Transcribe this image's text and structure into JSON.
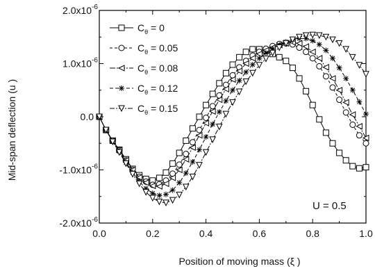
{
  "chart_data": {
    "type": "line",
    "xlabel": "Position of moving mass (ξ )",
    "ylabel": "Mid-span deflection (u )",
    "xlim": [
      0.0,
      1.0
    ],
    "ylim": [
      -2e-06,
      2e-06
    ],
    "x_ticks": [
      {
        "value": 0.0,
        "label": "0.0"
      },
      {
        "value": 0.2,
        "label": "0.2"
      },
      {
        "value": 0.4,
        "label": "0.4"
      },
      {
        "value": 0.6,
        "label": "0.6"
      },
      {
        "value": 0.8,
        "label": "0.8"
      },
      {
        "value": 1.0,
        "label": "1.0"
      }
    ],
    "y_ticks": [
      {
        "value": 2e-06,
        "mantissa": "2.0x10",
        "exponent": "-6"
      },
      {
        "value": 1e-06,
        "mantissa": "1.0x10",
        "exponent": "-6"
      },
      {
        "value": 0.0,
        "mantissa": "0.0",
        "exponent": ""
      },
      {
        "value": -1e-06,
        "mantissa": "-1.0x10",
        "exponent": "-6"
      },
      {
        "value": -2e-06,
        "mantissa": "-2.0x10",
        "exponent": "-6"
      }
    ],
    "annotation": "U = 0.5",
    "legend_position": "top-left",
    "grid": false,
    "x": [
      0.0,
      0.025,
      0.05,
      0.075,
      0.1,
      0.125,
      0.15,
      0.175,
      0.2,
      0.225,
      0.25,
      0.275,
      0.3,
      0.325,
      0.35,
      0.375,
      0.4,
      0.425,
      0.45,
      0.475,
      0.5,
      0.525,
      0.55,
      0.575,
      0.6,
      0.625,
      0.65,
      0.675,
      0.7,
      0.725,
      0.75,
      0.775,
      0.8,
      0.825,
      0.85,
      0.875,
      0.9,
      0.925,
      0.95,
      0.975,
      1.0
    ],
    "series": [
      {
        "name": "Cθ = 0",
        "sym": "C",
        "sub": "θ",
        "value": " = 0",
        "marker": "square",
        "dash": "",
        "values": [
          0.0,
          -2.5e-07,
          -4.5e-07,
          -6.2e-07,
          -8e-07,
          -9.8e-07,
          -1.1e-06,
          -1.17e-06,
          -1.2e-06,
          -1.15e-06,
          -1.05e-06,
          -8.8e-07,
          -6.8e-07,
          -4.5e-07,
          -2.2e-07,
          0.0,
          2.2e-07,
          4.3e-07,
          6.3e-07,
          8.2e-07,
          9.8e-07,
          1.12e-06,
          1.22e-06,
          1.27e-06,
          1.27e-06,
          1.24e-06,
          1.18e-06,
          1.12e-06,
          1.05e-06,
          9.2e-07,
          7.2e-07,
          4.8e-07,
          2.2e-07,
          -5e-08,
          -3e-07,
          -5e-07,
          -6.8e-07,
          -8.2e-07,
          -9.3e-07,
          -9.7e-07,
          -9.5e-07
        ]
      },
      {
        "name": "Cθ = 0.05",
        "sym": "C",
        "sub": "θ",
        "value": " = 0.05",
        "marker": "circle",
        "dash": "4,3",
        "values": [
          0.0,
          -2.5e-07,
          -4.5e-07,
          -6.3e-07,
          -8.2e-07,
          -1e-06,
          -1.13e-06,
          -1.22e-06,
          -1.28e-06,
          -1.27e-06,
          -1.2e-06,
          -1.07e-06,
          -9e-07,
          -7e-07,
          -4.8e-07,
          -2.5e-07,
          -2e-08,
          2e-07,
          4e-07,
          6e-07,
          7.8e-07,
          9.3e-07,
          1.05e-06,
          1.15e-06,
          1.22e-06,
          1.28e-06,
          1.33e-06,
          1.37e-06,
          1.38e-06,
          1.36e-06,
          1.3e-06,
          1.22e-06,
          1.1e-06,
          9.5e-07,
          7.6e-07,
          5.5e-07,
          3.2e-07,
          8e-08,
          -1.5e-07,
          -3.5e-07,
          -5e-07
        ]
      },
      {
        "name": "Cθ = 0.08",
        "sym": "C",
        "sub": "θ",
        "value": " = 0.08",
        "marker": "triangle-left",
        "dash": "8,2,2,2",
        "values": [
          0.0,
          -2.5e-07,
          -4.5e-07,
          -6.3e-07,
          -8.2e-07,
          -1e-06,
          -1.14e-06,
          -1.24e-06,
          -1.3e-06,
          -1.31e-06,
          -1.26e-06,
          -1.15e-06,
          -1e-06,
          -8e-07,
          -5.8e-07,
          -3.5e-07,
          -1.2e-07,
          1e-07,
          3.2e-07,
          5.2e-07,
          7e-07,
          8.6e-07,
          1e-06,
          1.1e-06,
          1.18e-06,
          1.25e-06,
          1.3e-06,
          1.35e-06,
          1.38e-06,
          1.4e-06,
          1.38e-06,
          1.32e-06,
          1.22e-06,
          1.1e-06,
          9.3e-07,
          7.2e-07,
          5e-07,
          2.7e-07,
          4e-08,
          -1.8e-07,
          -4e-07
        ]
      },
      {
        "name": "Cθ = 0.12",
        "sym": "C",
        "sub": "θ",
        "value": " = 0.12",
        "marker": "asterisk",
        "dash": "5,3",
        "values": [
          0.0,
          -2.5e-07,
          -4.6e-07,
          -6.5e-07,
          -8.6e-07,
          -1.05e-06,
          -1.22e-06,
          -1.35e-06,
          -1.44e-06,
          -1.48e-06,
          -1.46e-06,
          -1.38e-06,
          -1.24e-06,
          -1.06e-06,
          -8.5e-07,
          -6.2e-07,
          -3.8e-07,
          -1.4e-07,
          9e-08,
          3e-07,
          5e-07,
          6.8e-07,
          8.4e-07,
          9.8e-07,
          1.1e-06,
          1.2e-06,
          1.28e-06,
          1.35e-06,
          1.41e-06,
          1.45e-06,
          1.47e-06,
          1.47e-06,
          1.43e-06,
          1.36e-06,
          1.25e-06,
          1.1e-06,
          9.2e-07,
          7.2e-07,
          5e-07,
          2.8e-07,
          5e-08
        ]
      },
      {
        "name": "Cθ = 0.15",
        "sym": "C",
        "sub": "θ",
        "value": " = 0.15",
        "marker": "triangle-down",
        "dash": "7,2,2,2",
        "values": [
          0.0,
          -2.5e-07,
          -4.7e-07,
          -6.7e-07,
          -8.8e-07,
          -1.08e-06,
          -1.26e-06,
          -1.42e-06,
          -1.53e-06,
          -1.6e-06,
          -1.62e-06,
          -1.57e-06,
          -1.47e-06,
          -1.32e-06,
          -1.13e-06,
          -9.1e-07,
          -6.7e-07,
          -4.3e-07,
          -1.9e-07,
          5e-08,
          2.7e-07,
          4.7e-07,
          6.6e-07,
          8.2e-07,
          9.7e-07,
          1.09e-06,
          1.2e-06,
          1.3e-06,
          1.38e-06,
          1.45e-06,
          1.5e-06,
          1.53e-06,
          1.54e-06,
          1.53e-06,
          1.5e-06,
          1.45e-06,
          1.38e-06,
          1.27e-06,
          1.12e-06,
          9.7e-07,
          8e-07
        ]
      }
    ]
  }
}
